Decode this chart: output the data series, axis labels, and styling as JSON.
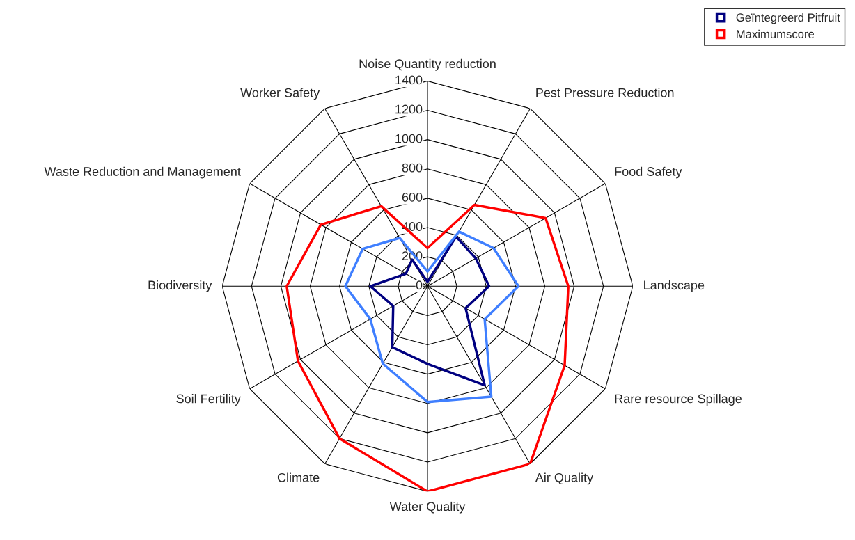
{
  "chart_data": {
    "type": "radar",
    "categories": [
      "Noise Quantity reduction",
      "Pest Pressure Reduction",
      "Food Safety",
      "Landscape",
      "Rare resource Spillage",
      "Air Quality",
      "Water Quality",
      "Climate",
      "Soil Fertility",
      "Biodiversity",
      "Waste Reduction and Management",
      "Worker Safety"
    ],
    "series": [
      {
        "name": "Geïntegreerd Pitfruit",
        "color": "#000080",
        "values": [
          30,
          390,
          380,
          420,
          300,
          780,
          530,
          480,
          270,
          390,
          170,
          210
        ]
      },
      {
        "color": "#3f7fff",
        "values": [
          100,
          430,
          520,
          620,
          450,
          870,
          790,
          610,
          450,
          560,
          510,
          380
        ]
      },
      {
        "name": "Maximumscore",
        "color": "#ff0000",
        "values": [
          260,
          640,
          930,
          960,
          1080,
          1400,
          1400,
          1200,
          1020,
          960,
          840,
          630
        ]
      }
    ],
    "ylim": [
      0,
      1400
    ],
    "yticks": [
      0,
      200,
      400,
      600,
      800,
      1000,
      1200,
      1400
    ],
    "grid": true,
    "legend": "top right",
    "marker": "none",
    "line_style": "solid"
  }
}
